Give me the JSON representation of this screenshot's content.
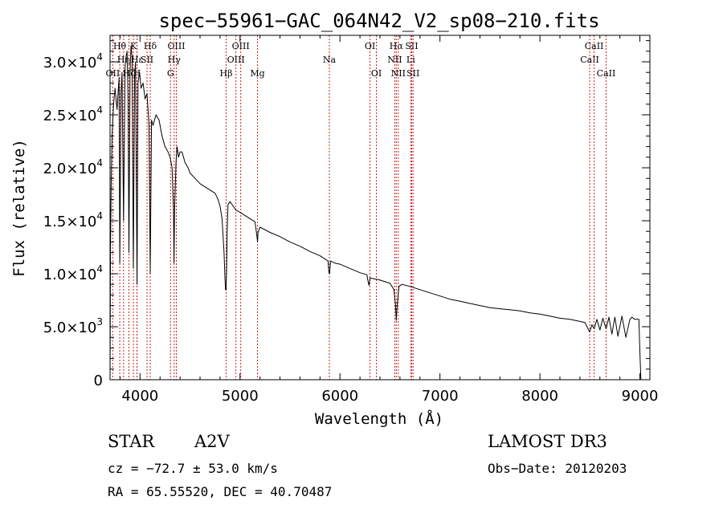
{
  "chart_data": {
    "type": "line",
    "title": "spec−55961−GAC_064N42_V2_sp08−210.fits",
    "xlabel": "Wavelength (Å)",
    "ylabel": "Flux (relative)",
    "xlim": [
      3700,
      9100
    ],
    "ylim": [
      0,
      32500
    ],
    "x_ticks": [
      4000,
      5000,
      6000,
      7000,
      8000,
      9000
    ],
    "x_tick_labels": [
      "4000",
      "5000",
      "6000",
      "7000",
      "8000",
      "9000"
    ],
    "y_ticks": [
      0,
      5000,
      10000,
      15000,
      20000,
      25000,
      30000
    ],
    "y_tick_labels": [
      {
        "mant": "0",
        "exp": ""
      },
      {
        "mant": "5.0×10",
        "exp": "3"
      },
      {
        "mant": "1.0×10",
        "exp": "4"
      },
      {
        "mant": "1.5×10",
        "exp": "4"
      },
      {
        "mant": "2.0×10",
        "exp": "4"
      },
      {
        "mant": "2.5×10",
        "exp": "4"
      },
      {
        "mant": "3.0×10",
        "exp": "4"
      }
    ],
    "line_color": "#000000",
    "marker_color": "#cc2222",
    "series": [
      {
        "name": "spectrum",
        "x": [
          3700,
          3705,
          3712,
          3720,
          3735,
          3750,
          3770,
          3790,
          3797,
          3810,
          3820,
          3835,
          3850,
          3860,
          3870,
          3880,
          3889,
          3900,
          3910,
          3920,
          3933,
          3945,
          3955,
          3970,
          3980,
          3995,
          4010,
          4030,
          4050,
          4070,
          4090,
          4102,
          4115,
          4130,
          4160,
          4190,
          4220,
          4250,
          4280,
          4300,
          4320,
          4335,
          4340,
          4345,
          4360,
          4370,
          4385,
          4400,
          4420,
          4450,
          4480,
          4500,
          4550,
          4600,
          4650,
          4700,
          4750,
          4780,
          4800,
          4820,
          4840,
          4850,
          4855,
          4861,
          4867,
          4872,
          4880,
          4900,
          4930,
          4960,
          5000,
          5050,
          5100,
          5150,
          5170,
          5175,
          5180,
          5200,
          5300,
          5400,
          5500,
          5600,
          5700,
          5800,
          5880,
          5890,
          5896,
          5905,
          5950,
          6000,
          6100,
          6200,
          6270,
          6280,
          6290,
          6300,
          6400,
          6500,
          6540,
          6555,
          6563,
          6572,
          6590,
          6620,
          6700,
          6800,
          6900,
          7000,
          7100,
          7200,
          7300,
          7400,
          7500,
          7600,
          7700,
          7800,
          7900,
          8000,
          8100,
          8200,
          8300,
          8400,
          8450,
          8498,
          8520,
          8542,
          8570,
          8600,
          8630,
          8662,
          8690,
          8720,
          8750,
          8780,
          8820,
          8860,
          8900,
          8920,
          8950,
          8990,
          9000,
          9010
        ],
        "y": [
          0,
          13000,
          19000,
          23000,
          26000,
          27500,
          25500,
          28500,
          11000,
          27000,
          29000,
          15000,
          29500,
          30500,
          31000,
          26500,
          12000,
          29000,
          31500,
          30500,
          10500,
          28500,
          30000,
          9000,
          28000,
          29000,
          27500,
          28000,
          26500,
          27000,
          24000,
          10000,
          24500,
          24000,
          25000,
          24500,
          23000,
          22000,
          21500,
          21000,
          20000,
          16000,
          11000,
          16000,
          20500,
          22000,
          21000,
          21500,
          21500,
          20500,
          20000,
          19500,
          19000,
          18500,
          18200,
          17900,
          17600,
          17000,
          16400,
          15200,
          12000,
          9500,
          8500,
          8500,
          11000,
          14000,
          16500,
          16800,
          16400,
          16000,
          15800,
          15500,
          15200,
          14900,
          13500,
          13000,
          13900,
          14400,
          13900,
          13500,
          13000,
          12600,
          12100,
          11700,
          11200,
          10100,
          10000,
          11200,
          11000,
          10900,
          10500,
          10100,
          9900,
          9300,
          8900,
          9600,
          9400,
          9100,
          8500,
          7000,
          5600,
          7000,
          8800,
          9000,
          8800,
          8500,
          8200,
          7900,
          7600,
          7400,
          7200,
          7000,
          6800,
          6700,
          6600,
          6500,
          6300,
          6200,
          6000,
          5800,
          5700,
          5500,
          5400,
          4500,
          5200,
          4800,
          5700,
          4700,
          5800,
          4800,
          5900,
          4300,
          5900,
          4100,
          6000,
          4000,
          5700,
          5900,
          5700,
          5700,
          2500,
          0
        ]
      }
    ],
    "line_markers": [
      {
        "label": "Hθ",
        "wl": 3797,
        "row": 0
      },
      {
        "label": "OII",
        "wl": 3727,
        "row": 2
      },
      {
        "label": "Hη",
        "wl": 3835,
        "row": 1
      },
      {
        "label": "Hζ",
        "wl": 3889,
        "row": 2
      },
      {
        "label": "K",
        "wl": 3934,
        "row": 0
      },
      {
        "label": "H",
        "wl": 3969,
        "row": 2
      },
      {
        "label": "Hε",
        "wl": 3970,
        "row": 1
      },
      {
        "label": "Hδ",
        "wl": 4102,
        "row": 0
      },
      {
        "label": "SII",
        "wl": 4070,
        "row": 1
      },
      {
        "label": "G",
        "wl": 4305,
        "row": 2
      },
      {
        "label": "OIII",
        "wl": 4363,
        "row": 0
      },
      {
        "label": "Hγ",
        "wl": 4341,
        "row": 1
      },
      {
        "label": "Hβ",
        "wl": 4861,
        "row": 2
      },
      {
        "label": "OIII",
        "wl": 4959,
        "row": 1
      },
      {
        "label": "OIII",
        "wl": 5007,
        "row": 0
      },
      {
        "label": "Mg",
        "wl": 5175,
        "row": 2
      },
      {
        "label": "Na",
        "wl": 5894,
        "row": 1
      },
      {
        "label": "OI",
        "wl": 6300,
        "row": 0
      },
      {
        "label": "OI",
        "wl": 6364,
        "row": 2
      },
      {
        "label": "NII",
        "wl": 6548,
        "row": 1
      },
      {
        "label": "Hα",
        "wl": 6563,
        "row": 0
      },
      {
        "label": "NII",
        "wl": 6583,
        "row": 2
      },
      {
        "label": "Li",
        "wl": 6708,
        "row": 1
      },
      {
        "label": "SII",
        "wl": 6717,
        "row": 0
      },
      {
        "label": "SII",
        "wl": 6731,
        "row": 2
      },
      {
        "label": "CaII",
        "wl": 8498,
        "row": 1
      },
      {
        "label": "CaII",
        "wl": 8542,
        "row": 0
      },
      {
        "label": "CaII",
        "wl": 8662,
        "row": 2
      }
    ]
  },
  "info": {
    "object_class": "STAR",
    "subclass": "A2V",
    "survey": "LAMOST DR3",
    "cz": "cz = −72.7 ± 53.0 km/s",
    "obs_date": "Obs−Date: 20120203",
    "coords": "RA =  65.55520, DEC =  40.70487"
  }
}
